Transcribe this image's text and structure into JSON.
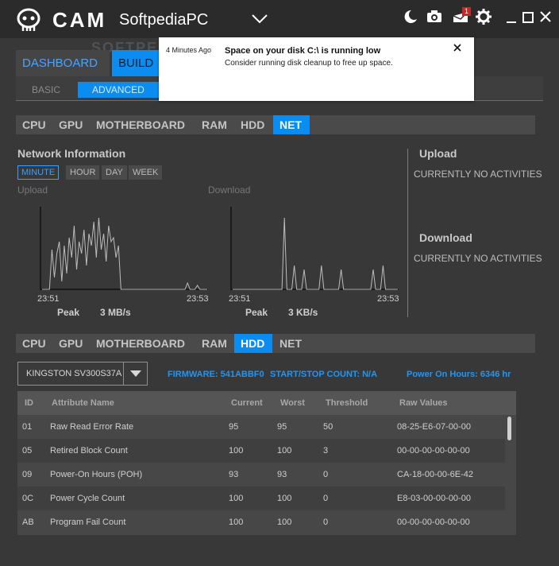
{
  "app": {
    "brand": "CAM",
    "pc_name": "SoftpediaPC",
    "watermark": "SOFTPEDIA"
  },
  "titlebar_icons": [
    "moon-icon",
    "camera-icon",
    "notifications-icon",
    "gear-icon",
    "minimize-icon",
    "maximize-icon",
    "close-icon"
  ],
  "notifications_badge": "1",
  "main_tabs": {
    "dashboard": "DASHBOARD",
    "build": "BUILD"
  },
  "sub_tabs": {
    "basic": "BASIC",
    "advanced": "ADVANCED"
  },
  "hw_tabs": [
    "CPU",
    "GPU",
    "MOTHERBOARD",
    "RAM",
    "HDD",
    "NET"
  ],
  "network": {
    "title": "Network Information",
    "periods": [
      "MINUTE",
      "HOUR",
      "DAY",
      "WEEK"
    ],
    "active_period": "MINUTE",
    "upload_label": "Upload",
    "download_label": "Download",
    "upload_graph": {
      "start": "23:51",
      "end": "23:53",
      "peak_label": "Peak",
      "peak_value": "3 MB/s",
      "series": [
        0,
        0,
        0,
        0,
        50,
        15,
        45,
        60,
        10,
        55,
        20,
        65,
        40,
        80,
        25,
        60,
        45,
        75,
        30,
        70,
        55,
        85,
        40,
        90,
        50,
        70,
        35,
        80,
        60,
        65,
        40,
        55,
        0,
        0,
        0,
        0,
        0,
        0,
        0,
        0,
        0,
        0,
        0,
        0,
        0,
        0,
        0,
        0,
        0,
        0,
        0,
        0,
        0,
        0,
        0,
        0,
        0,
        0,
        0,
        8,
        0,
        0,
        0,
        5,
        0,
        0,
        0,
        0
      ]
    },
    "download_graph": {
      "start": "23:51",
      "end": "23:53",
      "peak_label": "Peak",
      "peak_value": "3 KB/s",
      "series": [
        0,
        0,
        0,
        0,
        0,
        0,
        0,
        0,
        0,
        0,
        0,
        0,
        0,
        0,
        0,
        0,
        0,
        0,
        0,
        0,
        0,
        90,
        0,
        0,
        0,
        30,
        0,
        0,
        0,
        25,
        0,
        0,
        0,
        0,
        0,
        0,
        30,
        0,
        0,
        0,
        0,
        0,
        0,
        0,
        25,
        0,
        0,
        0,
        0,
        0,
        0,
        0,
        0,
        0,
        0,
        0,
        0,
        25,
        0,
        0,
        0,
        30,
        0,
        0,
        0,
        0,
        0,
        0
      ]
    },
    "side": {
      "upload_heading": "Upload",
      "upload_status": "CURRENTLY NO ACTIVITIES",
      "download_heading": "Download",
      "download_status": "CURRENTLY NO ACTIVITIES"
    }
  },
  "hdd": {
    "drive": "KINGSTON SV300S37A",
    "firmware": "FIRMWARE: 541ABBF0",
    "start_stop": "START/STOP COUNT: N/A",
    "power_on": "Power On Hours: 6346 hr",
    "columns": [
      "ID",
      "Attribute Name",
      "Current",
      "Worst",
      "Threshold",
      "Raw Values"
    ],
    "rows": [
      [
        "01",
        "Raw Read Error Rate",
        "95",
        "95",
        "50",
        "08-25-E6-07-00-00"
      ],
      [
        "05",
        "Retired Block Count",
        "100",
        "100",
        "3",
        "00-00-00-00-00-00"
      ],
      [
        "09",
        "Power-On Hours (POH)",
        "93",
        "93",
        "0",
        "CA-18-00-00-6E-42"
      ],
      [
        "0C",
        "Power Cycle Count",
        "100",
        "100",
        "0",
        "E8-03-00-00-00-00"
      ],
      [
        "AB",
        "Program Fail Count",
        "100",
        "100",
        "0",
        "00-00-00-00-00-00"
      ]
    ]
  },
  "notification": {
    "time": "4 Minutes Ago",
    "title": "Space on your disk C:\\ is running low",
    "body": "Consider running disk cleanup to free up space."
  }
}
